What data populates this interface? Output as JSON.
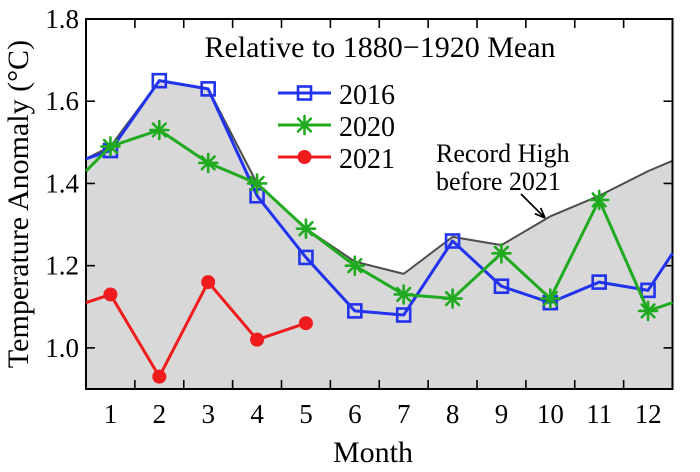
{
  "chart_data": {
    "type": "line",
    "title": "Relative to 1880−1920 Mean",
    "xlabel": "Month",
    "ylabel": "Temperature Anomaly (°C)",
    "xlim": [
      0.5,
      12.5
    ],
    "ylim": [
      0.9,
      1.8
    ],
    "grid": false,
    "xtick_values": [
      1.5,
      2.5,
      3.5,
      4.5,
      5.5,
      6.5,
      7.5,
      8.5,
      9.5,
      10.5,
      11.5
    ],
    "xtick_label_positions": [
      1,
      2,
      3,
      4,
      5,
      6,
      7,
      8,
      9,
      10,
      11,
      12
    ],
    "xtick_labels": [
      "1",
      "2",
      "3",
      "4",
      "5",
      "6",
      "7",
      "8",
      "9",
      "10",
      "11",
      "12"
    ],
    "ytick_values": [
      1.0,
      1.2,
      1.4,
      1.6,
      1.8
    ],
    "ytick_labels": [
      "1.0",
      "1.2",
      "1.4",
      "1.6",
      "1.8"
    ],
    "colors": {
      "blue": "#2233ee",
      "green": "#1faa1f",
      "red": "#ee1c1c",
      "area_fill": "#d8d8d8",
      "area_edge": "#4d4d4d",
      "axis": "#000000"
    },
    "record_high_area": {
      "name": "Record High before 2021",
      "x": [
        0.5,
        1,
        2,
        3,
        4,
        5,
        6,
        7,
        8,
        9,
        10,
        11,
        12,
        12.5
      ],
      "y": [
        1.46,
        1.49,
        1.65,
        1.63,
        1.4,
        1.29,
        1.21,
        1.18,
        1.27,
        1.25,
        1.32,
        1.37,
        1.43,
        1.455
      ]
    },
    "series": [
      {
        "name": "2016",
        "marker": "open-square",
        "color_key": "blue",
        "x": [
          0.5,
          1,
          2,
          3,
          4,
          5,
          6,
          7,
          8,
          9,
          10,
          11,
          12,
          12.5
        ],
        "y": [
          1.46,
          1.48,
          1.65,
          1.63,
          1.37,
          1.22,
          1.09,
          1.08,
          1.26,
          1.15,
          1.11,
          1.16,
          1.14,
          1.23
        ]
      },
      {
        "name": "2020",
        "marker": "asterisk",
        "color_key": "green",
        "x": [
          0.5,
          1,
          2,
          3,
          4,
          5,
          6,
          7,
          8,
          9,
          10,
          11,
          12,
          12.5
        ],
        "y": [
          1.43,
          1.49,
          1.53,
          1.45,
          1.4,
          1.29,
          1.2,
          1.13,
          1.12,
          1.23,
          1.12,
          1.36,
          1.09,
          1.11
        ]
      },
      {
        "name": "2021",
        "marker": "filled-circle",
        "color_key": "red",
        "x": [
          0.5,
          1,
          2,
          3,
          4,
          5
        ],
        "y": [
          1.11,
          1.13,
          0.93,
          1.16,
          1.02,
          1.06
        ]
      }
    ],
    "legend": {
      "position": "upper-center",
      "entries": [
        {
          "label": "2016",
          "marker": "open-square",
          "color_key": "blue"
        },
        {
          "label": "2020",
          "marker": "asterisk",
          "color_key": "green"
        },
        {
          "label": "2021",
          "marker": "filled-circle",
          "color_key": "red"
        }
      ]
    },
    "annotation": {
      "line1": "Record High",
      "line2": "before 2021"
    }
  }
}
